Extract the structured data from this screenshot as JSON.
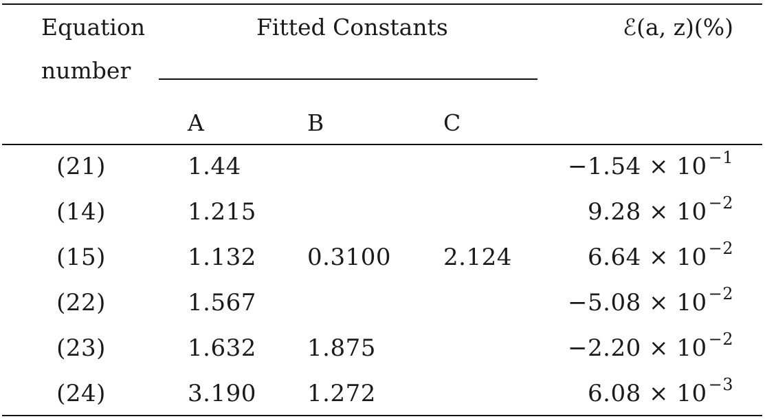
{
  "header": {
    "equation_line1": "Equation",
    "equation_line2": "number",
    "fitted_constants": "Fitted Constants",
    "error_label": "ℰ(a, z)(%)",
    "col_a": "A",
    "col_b": "B",
    "col_c": "C"
  },
  "rows": [
    {
      "eq": "(21)",
      "a": "1.44",
      "b": "",
      "c": "",
      "err_mantissa": "−1.54 × 10",
      "err_exp": "−1"
    },
    {
      "eq": "(14)",
      "a": "1.215",
      "b": "",
      "c": "",
      "err_mantissa": "9.28 × 10",
      "err_exp": "−2"
    },
    {
      "eq": "(15)",
      "a": "1.132",
      "b": "0.3100",
      "c": "2.124",
      "err_mantissa": "6.64 × 10",
      "err_exp": "−2"
    },
    {
      "eq": "(22)",
      "a": "1.567",
      "b": "",
      "c": "",
      "err_mantissa": "−5.08 × 10",
      "err_exp": "−2"
    },
    {
      "eq": "(23)",
      "a": "1.632",
      "b": "1.875",
      "c": "",
      "err_mantissa": "−2.20 × 10",
      "err_exp": "−2"
    },
    {
      "eq": "(24)",
      "a": "3.190",
      "b": "1.272",
      "c": "",
      "err_mantissa": "6.08 × 10",
      "err_exp": "−3"
    }
  ]
}
